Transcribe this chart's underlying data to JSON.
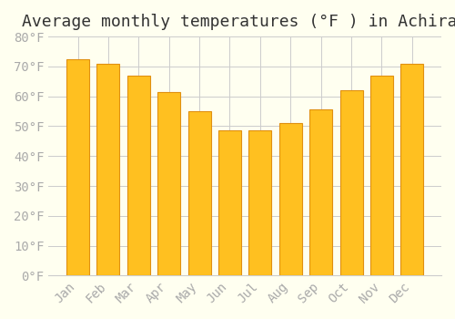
{
  "title": "Average monthly temperatures (°F ) in Achiras",
  "months": [
    "Jan",
    "Feb",
    "Mar",
    "Apr",
    "May",
    "Jun",
    "Jul",
    "Aug",
    "Sep",
    "Oct",
    "Nov",
    "Dec"
  ],
  "values": [
    72.5,
    71.0,
    67.0,
    61.5,
    55.0,
    48.5,
    48.5,
    51.0,
    55.5,
    62.0,
    67.0,
    71.0
  ],
  "bar_color_face": "#FFC020",
  "bar_color_edge": "#E09010",
  "background_color": "#FFFFF0",
  "grid_color": "#CCCCCC",
  "ylim": [
    0,
    80
  ],
  "yticks": [
    0,
    10,
    20,
    30,
    40,
    50,
    60,
    70,
    80
  ],
  "ylabel_suffix": "°F",
  "title_fontsize": 13,
  "tick_fontsize": 10,
  "tick_color": "#AAAAAA",
  "font_family": "monospace"
}
